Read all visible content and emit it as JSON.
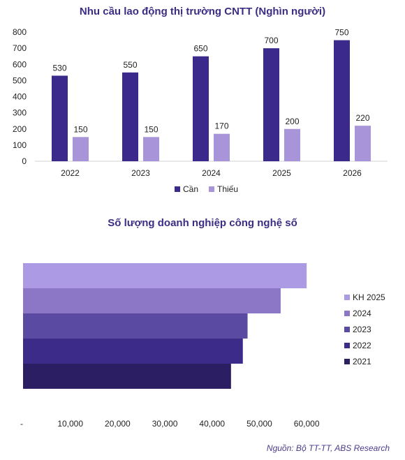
{
  "source": "Nguồn: Bộ TT-TT, ABS Research",
  "chart_data": [
    {
      "type": "bar",
      "title": "Nhu cầu lao động thị trường CNTT (Nghìn người)",
      "categories": [
        "2022",
        "2023",
        "2024",
        "2025",
        "2026"
      ],
      "series": [
        {
          "name": "Cần",
          "values": [
            530,
            550,
            650,
            700,
            750
          ],
          "color": "#3b2a8c"
        },
        {
          "name": "Thiếu",
          "values": [
            150,
            150,
            170,
            200,
            220
          ],
          "color": "#a894d8"
        }
      ],
      "ylim": [
        0,
        800
      ],
      "yticks": [
        "0",
        "100",
        "200",
        "300",
        "400",
        "500",
        "600",
        "700",
        "800"
      ],
      "legend": "bottom",
      "grid": false
    },
    {
      "type": "bar",
      "orientation": "horizontal",
      "title": "Số lượng doanh nghiệp công nghệ số",
      "categories": [
        "KH 2025",
        "2024",
        "2023",
        "2022",
        "2021"
      ],
      "values": [
        60000,
        54500,
        47500,
        46500,
        44000
      ],
      "colors": [
        "#ac9be4",
        "#8c76c6",
        "#5a4aa2",
        "#3d2b8a",
        "#2b1e63"
      ],
      "xlim": [
        0,
        65000
      ],
      "xticks": [
        "-",
        "10,000",
        "20,000",
        "30,000",
        "40,000",
        "50,000",
        "60,000"
      ],
      "legend": "right",
      "grid": false
    }
  ]
}
